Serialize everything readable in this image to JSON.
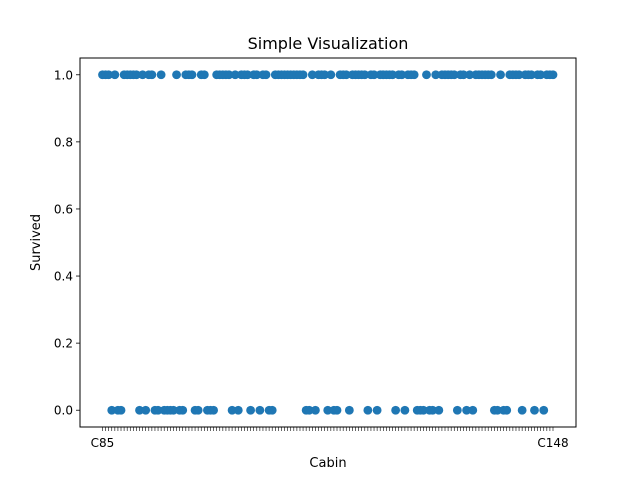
{
  "chart_data": {
    "type": "scatter",
    "title": "Simple Visualization",
    "xlabel": "Cabin",
    "ylabel": "Survived",
    "ylim": [
      -0.05,
      1.05
    ],
    "yticks": [
      0.0,
      0.2,
      0.4,
      0.6,
      0.8,
      1.0
    ],
    "ytick_labels": [
      "0.0",
      "0.2",
      "0.4",
      "0.6",
      "0.8",
      "1.0"
    ],
    "grid": false,
    "legend": "none",
    "marker_color": "#1f77b4",
    "xtick_label_first": "C85",
    "xtick_label_last": "C148",
    "xtick_count": 147,
    "y": [
      1,
      1,
      1,
      0,
      1,
      0,
      0,
      1,
      1,
      1,
      1,
      1,
      0,
      1,
      0,
      1,
      1,
      0,
      0,
      1,
      0,
      0,
      0,
      0,
      1,
      0,
      0,
      1,
      1,
      1,
      0,
      0,
      1,
      1,
      0,
      0,
      0,
      1,
      1,
      1,
      1,
      1,
      0,
      1,
      0,
      1,
      1,
      1,
      0,
      1,
      1,
      0,
      1,
      1,
      0,
      0,
      1,
      1,
      1,
      1,
      1,
      1,
      1,
      1,
      1,
      1,
      0,
      0,
      1,
      0,
      1,
      1,
      1,
      0,
      1,
      0,
      0,
      1,
      1,
      1,
      0,
      1,
      1,
      1,
      1,
      1,
      0,
      1,
      1,
      0,
      1,
      1,
      1,
      1,
      1,
      0,
      1,
      1,
      0,
      1,
      1,
      1,
      0,
      0,
      0,
      1,
      0,
      0,
      1,
      0,
      1,
      1,
      1,
      1,
      1,
      0,
      1,
      1,
      0,
      1,
      0,
      1,
      1,
      1,
      1,
      1,
      1,
      0,
      0,
      1,
      0,
      0,
      1,
      1,
      1,
      1,
      0,
      1,
      1,
      1,
      0,
      1,
      1,
      0,
      1,
      1,
      1
    ]
  }
}
